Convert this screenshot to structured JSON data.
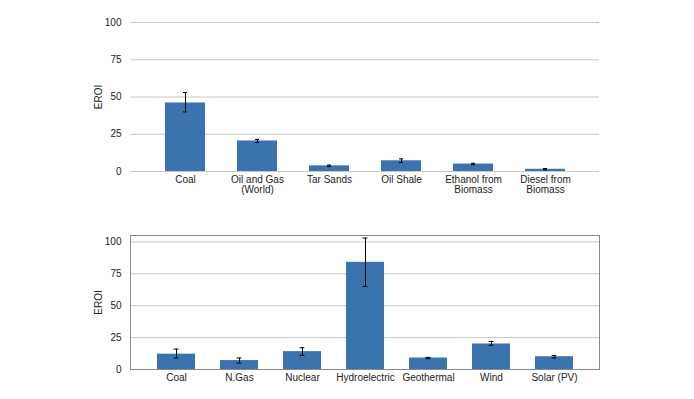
{
  "chart_data": [
    {
      "type": "bar",
      "y_label": "EROI",
      "categories": [
        "Coal",
        "Oil and Gas (World)",
        "Tar Sands",
        "Oil Shale",
        "Ethanol from Biomass",
        "Diesel from Biomass"
      ],
      "values": [
        46,
        20.5,
        3.8,
        7.2,
        5,
        1.5
      ],
      "error_low": [
        40,
        19.5,
        3.3,
        6,
        4.5,
        1
      ],
      "error_high": [
        53,
        21.5,
        4.3,
        8.5,
        5.5,
        2
      ],
      "color": "#3b73ae",
      "ylim": [
        0,
        100
      ],
      "yticks": [
        0,
        25,
        50,
        75,
        100
      ],
      "grid": true
    },
    {
      "type": "bar",
      "y_label": "EROI",
      "categories": [
        "Coal",
        "N.Gas",
        "Nuclear",
        "Hydroelectric",
        "Geothermal",
        "Wind",
        "Solar (PV)"
      ],
      "values": [
        12,
        7,
        14,
        84,
        9,
        20,
        10
      ],
      "error_low": [
        9,
        5,
        11,
        65,
        8.5,
        19,
        9
      ],
      "error_high": [
        16,
        9,
        17,
        103,
        9.5,
        22,
        11
      ],
      "color": "#3b73ae",
      "ylim": [
        0,
        105
      ],
      "yticks": [
        0,
        25,
        50,
        75,
        100
      ],
      "grid": true
    }
  ]
}
